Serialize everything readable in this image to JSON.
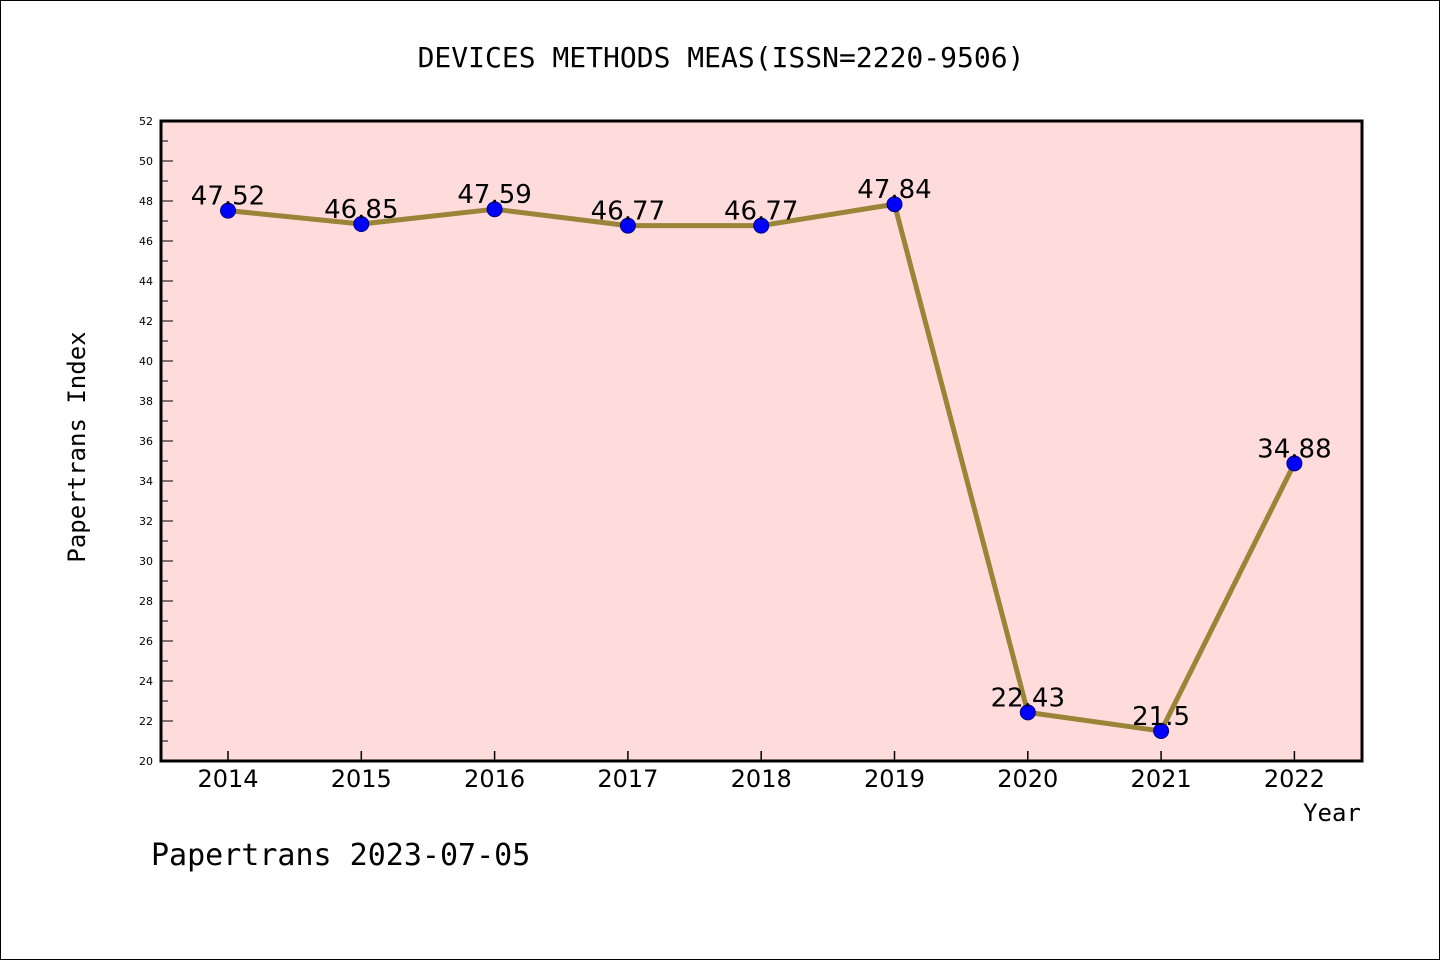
{
  "colors": {
    "plot_background": "#ffdcdc",
    "line": "#9a8437",
    "marker_fill": "#0000ff",
    "marker_stroke": "#000080",
    "axis": "#000000"
  },
  "chart_data": {
    "type": "line",
    "title": "DEVICES METHODS MEAS(ISSN=2220-9506)",
    "xlabel": "Year",
    "ylabel": "Papertrans Index",
    "categories": [
      "2014",
      "2015",
      "2016",
      "2017",
      "2018",
      "2019",
      "2020",
      "2021",
      "2022"
    ],
    "series": [
      {
        "values": [
          47.52,
          46.85,
          47.59,
          46.77,
          46.77,
          47.84,
          22.43,
          21.5,
          34.88
        ],
        "labels": [
          "47.52",
          "46.85",
          "47.59",
          "46.77",
          "46.77",
          "47.84",
          "22.43",
          "21.5",
          "34.88"
        ]
      }
    ],
    "ylim": [
      20,
      52
    ],
    "y_major_ticks": [
      20,
      22,
      24,
      26,
      28,
      30,
      32,
      34,
      36,
      38,
      40,
      42,
      44,
      46,
      48,
      50,
      52
    ],
    "y_tick_labels": [
      "20",
      "22",
      "24",
      "26",
      "28",
      "30",
      "32",
      "34",
      "36",
      "38",
      "40",
      "42",
      "44",
      "46",
      "48",
      "50",
      "52"
    ],
    "y_minor_step": 1,
    "grid": false,
    "legend": "none"
  },
  "footer": {
    "text": "Papertrans 2023-07-05"
  }
}
